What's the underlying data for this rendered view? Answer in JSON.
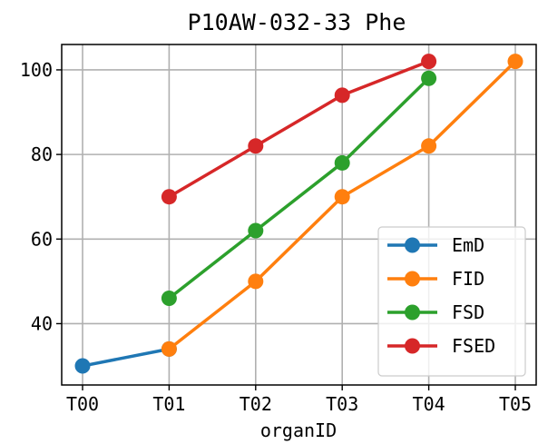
{
  "chart_data": {
    "type": "line",
    "title": "P10AW-032-33 Phe",
    "xlabel": "organID",
    "ylabel": "",
    "categories": [
      "T00",
      "T01",
      "T02",
      "T03",
      "T04",
      "T05"
    ],
    "ylim": [
      25.5,
      106
    ],
    "yticks": [
      40,
      60,
      80,
      100
    ],
    "grid": true,
    "legend_position": "lower-right",
    "series": [
      {
        "name": "EmD",
        "color": "#1f77b4",
        "values": [
          30,
          34,
          null,
          null,
          null,
          null
        ]
      },
      {
        "name": "FID",
        "color": "#ff7f0e",
        "values": [
          null,
          34,
          50,
          70,
          82,
          102
        ]
      },
      {
        "name": "FSD",
        "color": "#2ca02c",
        "values": [
          null,
          46,
          62,
          78,
          98,
          null
        ]
      },
      {
        "name": "FSED",
        "color": "#d62728",
        "values": [
          null,
          70,
          82,
          94,
          102,
          null
        ]
      }
    ]
  }
}
